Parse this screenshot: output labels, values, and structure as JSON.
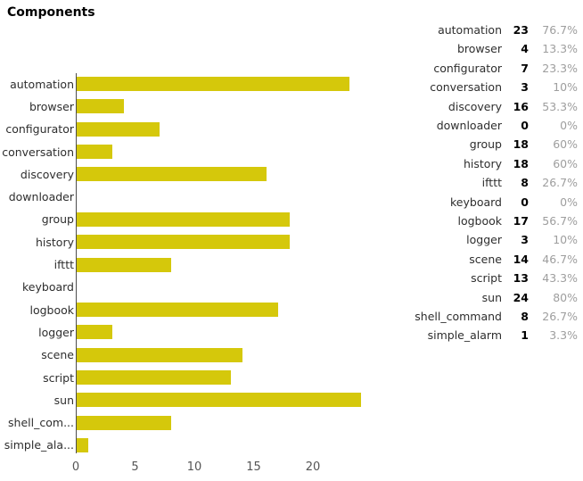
{
  "title": "Components",
  "colors": {
    "bar": "#d5c80b",
    "axis": "#4d4d4d",
    "label": "#2e2e2e",
    "tick": "#555555",
    "count": "#000000",
    "percent": "#9e9e9e",
    "background": "#ffffff"
  },
  "chart_data": {
    "type": "bar",
    "orientation": "horizontal",
    "title": "Components",
    "categories": [
      "automation",
      "browser",
      "configurator",
      "conversation",
      "discovery",
      "downloader",
      "group",
      "history",
      "ifttt",
      "keyboard",
      "logbook",
      "logger",
      "scene",
      "script",
      "sun",
      "shell_command",
      "simple_alarm"
    ],
    "display_labels": [
      "automation",
      "browser",
      "configurator",
      "conversation",
      "discovery",
      "downloader",
      "group",
      "history",
      "ifttt",
      "keyboard",
      "logbook",
      "logger",
      "scene",
      "script",
      "sun",
      "shell_com...",
      "simple_ala..."
    ],
    "values": [
      23,
      4,
      7,
      3,
      16,
      0,
      18,
      18,
      8,
      0,
      17,
      3,
      14,
      13,
      24,
      8,
      1
    ],
    "percentages": [
      "76.7%",
      "13.3%",
      "23.3%",
      "10%",
      "53.3%",
      "0%",
      "60%",
      "60%",
      "26.7%",
      "0%",
      "56.7%",
      "10%",
      "46.7%",
      "43.3%",
      "80%",
      "26.7%",
      "3.3%"
    ],
    "xticks": [
      0,
      5,
      10,
      15,
      20
    ],
    "xlim": [
      0,
      25.3
    ],
    "xlabel": "",
    "ylabel": "",
    "grid": false,
    "legend_position": "right"
  },
  "legend": {
    "rows": [
      {
        "label": "automation",
        "count": "23",
        "percent": "76.7%"
      },
      {
        "label": "browser",
        "count": "4",
        "percent": "13.3%"
      },
      {
        "label": "configurator",
        "count": "7",
        "percent": "23.3%"
      },
      {
        "label": "conversation",
        "count": "3",
        "percent": "10%"
      },
      {
        "label": "discovery",
        "count": "16",
        "percent": "53.3%"
      },
      {
        "label": "downloader",
        "count": "0",
        "percent": "0%"
      },
      {
        "label": "group",
        "count": "18",
        "percent": "60%"
      },
      {
        "label": "history",
        "count": "18",
        "percent": "60%"
      },
      {
        "label": "ifttt",
        "count": "8",
        "percent": "26.7%"
      },
      {
        "label": "keyboard",
        "count": "0",
        "percent": "0%"
      },
      {
        "label": "logbook",
        "count": "17",
        "percent": "56.7%"
      },
      {
        "label": "logger",
        "count": "3",
        "percent": "10%"
      },
      {
        "label": "scene",
        "count": "14",
        "percent": "46.7%"
      },
      {
        "label": "script",
        "count": "13",
        "percent": "43.3%"
      },
      {
        "label": "sun",
        "count": "24",
        "percent": "80%"
      },
      {
        "label": "shell_command",
        "count": "8",
        "percent": "26.7%"
      },
      {
        "label": "simple_alarm",
        "count": "1",
        "percent": "3.3%"
      }
    ]
  }
}
